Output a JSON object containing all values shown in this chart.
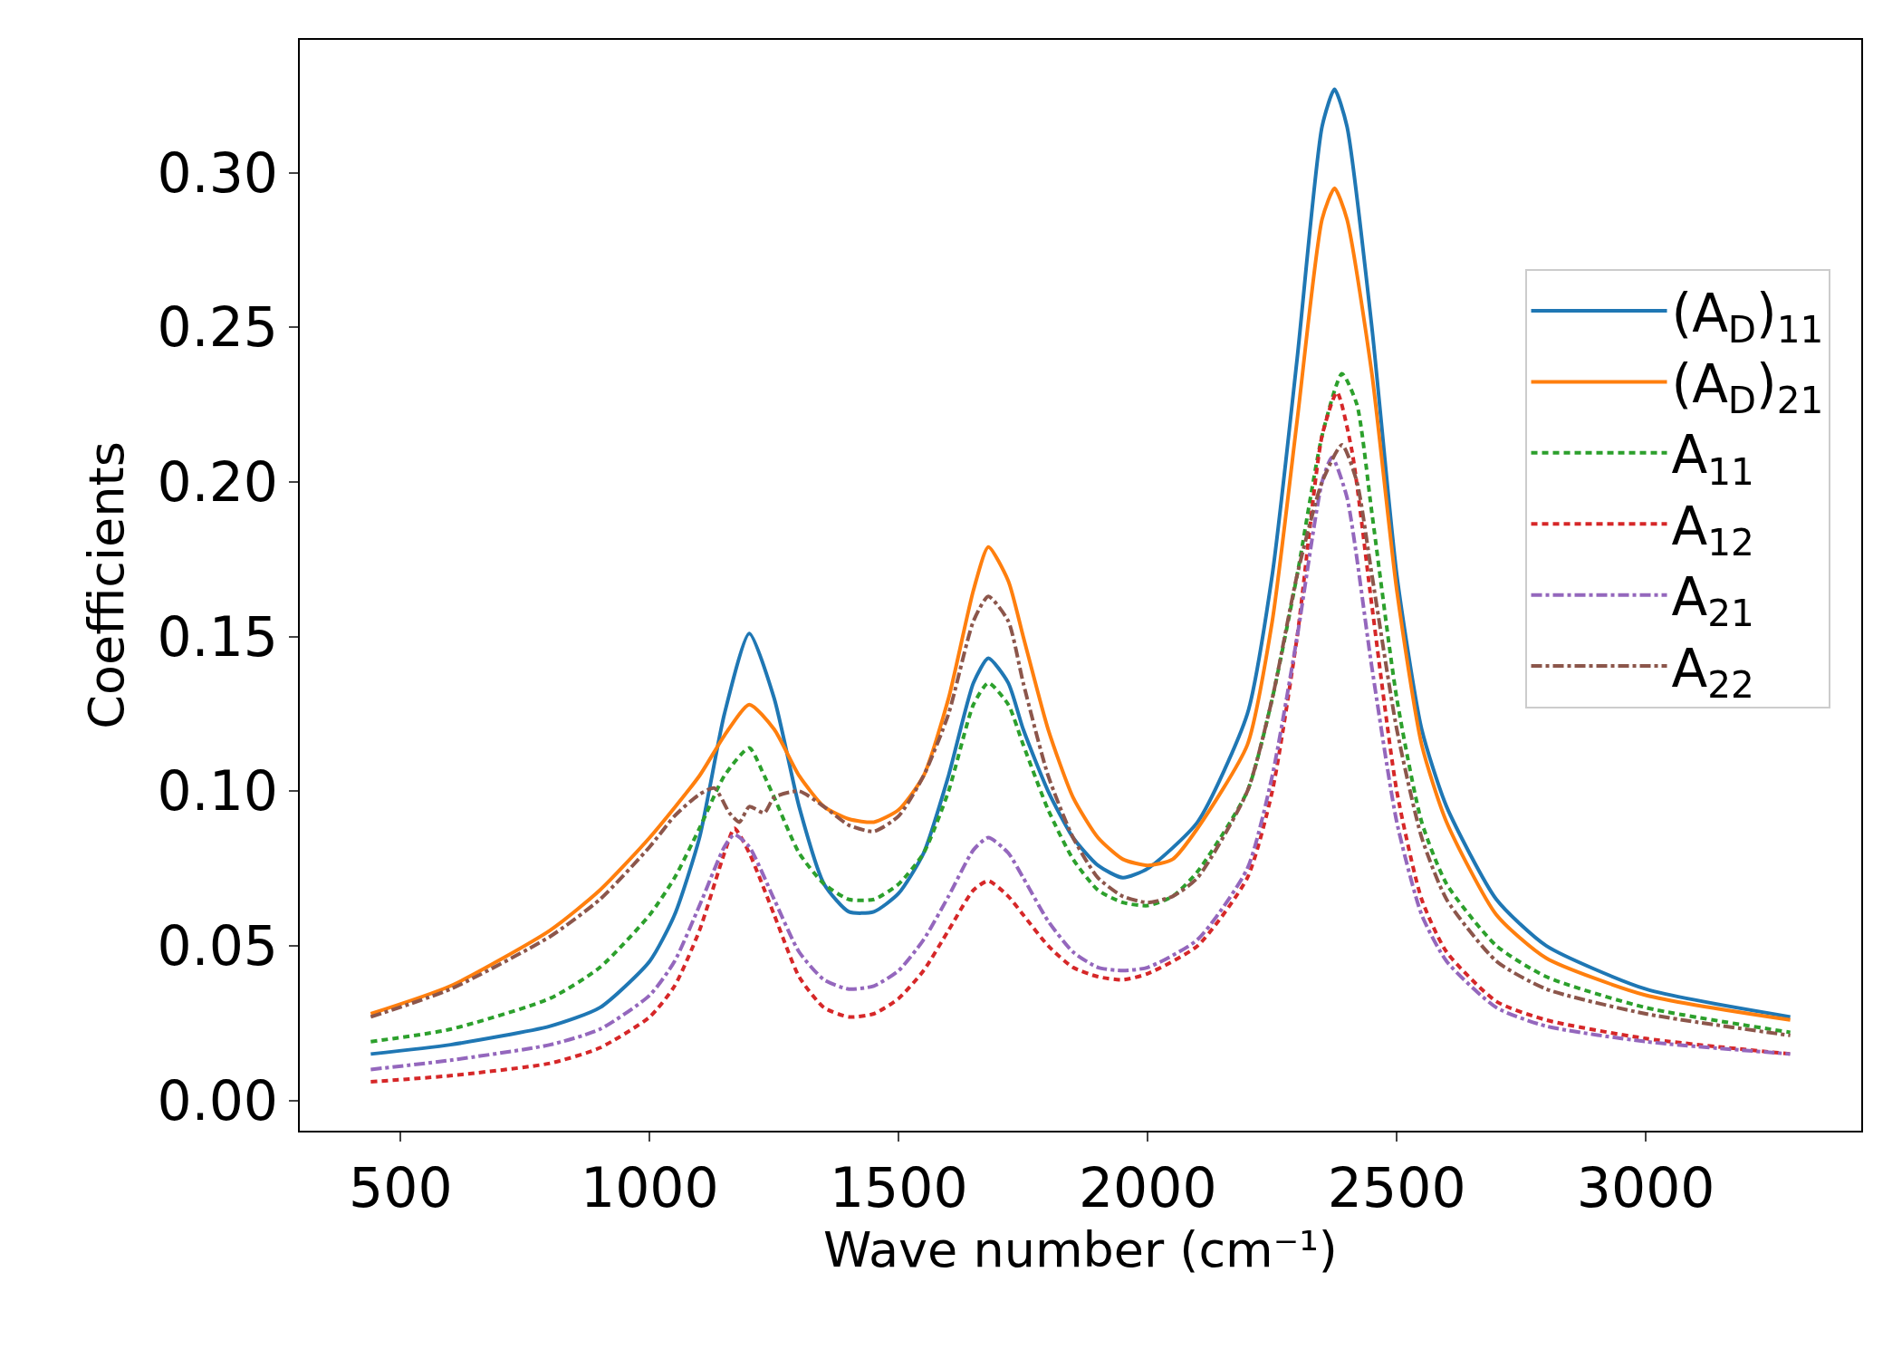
{
  "chart_data": {
    "type": "line",
    "xlabel": "Wave number (cm⁻¹)",
    "ylabel": "Coefficients",
    "xlim": [
      297.5,
      3432.5
    ],
    "ylim": [
      -0.0098,
      0.343
    ],
    "xticks": [
      500,
      1000,
      1500,
      2000,
      2500,
      3000
    ],
    "yticks": [
      {
        "value": 0,
        "label": "0.00"
      },
      {
        "value": 0.05,
        "label": "0.05"
      },
      {
        "value": 0.1,
        "label": "0.10"
      },
      {
        "value": 0.15,
        "label": "0.15"
      },
      {
        "value": 0.2,
        "label": "0.20"
      },
      {
        "value": 0.25,
        "label": "0.25"
      },
      {
        "value": 0.3,
        "label": "0.30"
      }
    ],
    "grid": false,
    "legend": "right",
    "marker": "none",
    "series": [
      {
        "name": "(A$_{D}$)$_{11}$",
        "color": "#1f77b4",
        "line_style": "solid",
        "x": [
          440,
          600,
          800,
          900,
          1000,
          1050,
          1100,
          1150,
          1200,
          1250,
          1300,
          1350,
          1400,
          1450,
          1500,
          1550,
          1600,
          1650,
          1680,
          1720,
          1750,
          1800,
          1850,
          1900,
          1950,
          2000,
          2100,
          2200,
          2250,
          2300,
          2350,
          2375,
          2400,
          2450,
          2500,
          2550,
          2600,
          2700,
          2800,
          3000,
          3290
        ],
        "values": [
          0.015,
          0.018,
          0.024,
          0.03,
          0.045,
          0.06,
          0.085,
          0.125,
          0.151,
          0.13,
          0.095,
          0.07,
          0.061,
          0.061,
          0.067,
          0.08,
          0.105,
          0.135,
          0.143,
          0.135,
          0.12,
          0.1,
          0.085,
          0.076,
          0.072,
          0.075,
          0.09,
          0.125,
          0.17,
          0.24,
          0.315,
          0.327,
          0.315,
          0.25,
          0.17,
          0.12,
          0.095,
          0.065,
          0.05,
          0.036,
          0.027
        ]
      },
      {
        "name": "(A$_{D}$)$_{21}$",
        "color": "#ff7f0e",
        "line_style": "solid",
        "x": [
          440,
          600,
          800,
          900,
          1000,
          1100,
          1150,
          1200,
          1250,
          1300,
          1350,
          1400,
          1450,
          1500,
          1550,
          1600,
          1650,
          1680,
          1720,
          1750,
          1800,
          1850,
          1900,
          1950,
          2000,
          2050,
          2100,
          2200,
          2250,
          2300,
          2350,
          2375,
          2400,
          2450,
          2500,
          2550,
          2600,
          2700,
          2800,
          3000,
          3290
        ],
        "values": [
          0.028,
          0.037,
          0.055,
          0.068,
          0.085,
          0.105,
          0.118,
          0.128,
          0.12,
          0.105,
          0.095,
          0.091,
          0.09,
          0.094,
          0.105,
          0.13,
          0.165,
          0.179,
          0.168,
          0.15,
          0.12,
          0.098,
          0.085,
          0.078,
          0.076,
          0.078,
          0.088,
          0.115,
          0.155,
          0.22,
          0.285,
          0.295,
          0.285,
          0.235,
          0.165,
          0.115,
          0.09,
          0.06,
          0.046,
          0.034,
          0.026
        ]
      },
      {
        "name": "A$_{11}$",
        "color": "#2ca02c",
        "line_style": "dotted",
        "x": [
          440,
          600,
          800,
          900,
          1000,
          1050,
          1100,
          1150,
          1200,
          1230,
          1250,
          1300,
          1350,
          1400,
          1450,
          1500,
          1550,
          1600,
          1650,
          1680,
          1720,
          1750,
          1800,
          1850,
          1900,
          1950,
          2000,
          2050,
          2100,
          2200,
          2250,
          2300,
          2350,
          2390,
          2420,
          2450,
          2500,
          2550,
          2600,
          2700,
          2800,
          3000,
          3290
        ],
        "values": [
          0.019,
          0.023,
          0.033,
          0.043,
          0.06,
          0.072,
          0.088,
          0.105,
          0.114,
          0.105,
          0.098,
          0.08,
          0.07,
          0.065,
          0.065,
          0.07,
          0.08,
          0.1,
          0.128,
          0.135,
          0.128,
          0.115,
          0.094,
          0.078,
          0.068,
          0.064,
          0.063,
          0.066,
          0.074,
          0.1,
          0.13,
          0.17,
          0.215,
          0.235,
          0.225,
          0.19,
          0.13,
          0.09,
          0.07,
          0.05,
          0.04,
          0.03,
          0.022
        ]
      },
      {
        "name": "A$_{12}$",
        "color": "#d62728",
        "line_style": "dotted",
        "x": [
          440,
          600,
          800,
          900,
          1000,
          1050,
          1100,
          1150,
          1170,
          1200,
          1250,
          1300,
          1350,
          1400,
          1450,
          1500,
          1550,
          1600,
          1650,
          1680,
          1720,
          1750,
          1800,
          1850,
          1900,
          1950,
          2000,
          2100,
          2200,
          2250,
          2300,
          2350,
          2380,
          2410,
          2450,
          2500,
          2550,
          2600,
          2700,
          2800,
          3000,
          3290
        ],
        "values": [
          0.006,
          0.008,
          0.012,
          0.017,
          0.027,
          0.037,
          0.055,
          0.08,
          0.088,
          0.08,
          0.06,
          0.04,
          0.03,
          0.027,
          0.028,
          0.033,
          0.042,
          0.055,
          0.068,
          0.071,
          0.066,
          0.06,
          0.05,
          0.043,
          0.04,
          0.039,
          0.041,
          0.05,
          0.072,
          0.1,
          0.15,
          0.215,
          0.229,
          0.21,
          0.16,
          0.1,
          0.065,
          0.048,
          0.032,
          0.026,
          0.02,
          0.015
        ]
      },
      {
        "name": "A$_{21}$",
        "color": "#9467bd",
        "line_style": "dashdot",
        "x": [
          440,
          600,
          800,
          900,
          1000,
          1050,
          1100,
          1150,
          1170,
          1200,
          1250,
          1300,
          1350,
          1400,
          1450,
          1500,
          1550,
          1600,
          1650,
          1680,
          1720,
          1750,
          1800,
          1850,
          1900,
          1950,
          2000,
          2100,
          2200,
          2250,
          2300,
          2350,
          2370,
          2400,
          2450,
          2500,
          2550,
          2600,
          2700,
          2800,
          3000,
          3290
        ],
        "values": [
          0.01,
          0.013,
          0.018,
          0.023,
          0.034,
          0.045,
          0.063,
          0.082,
          0.086,
          0.082,
          0.065,
          0.048,
          0.039,
          0.036,
          0.037,
          0.042,
          0.052,
          0.066,
          0.081,
          0.085,
          0.08,
          0.072,
          0.058,
          0.048,
          0.043,
          0.042,
          0.043,
          0.052,
          0.075,
          0.105,
          0.15,
          0.2,
          0.208,
          0.195,
          0.14,
          0.09,
          0.06,
          0.045,
          0.03,
          0.024,
          0.019,
          0.015
        ]
      },
      {
        "name": "A$_{22}$",
        "color": "#8c564b",
        "line_style": "dashdot",
        "x": [
          440,
          600,
          800,
          900,
          1000,
          1050,
          1100,
          1130,
          1160,
          1180,
          1200,
          1230,
          1250,
          1300,
          1350,
          1400,
          1450,
          1500,
          1550,
          1600,
          1650,
          1680,
          1720,
          1750,
          1800,
          1850,
          1900,
          1950,
          2000,
          2050,
          2100,
          2200,
          2250,
          2300,
          2350,
          2390,
          2420,
          2450,
          2500,
          2550,
          2600,
          2700,
          2800,
          3000,
          3290
        ],
        "values": [
          0.027,
          0.036,
          0.053,
          0.065,
          0.082,
          0.092,
          0.099,
          0.101,
          0.093,
          0.09,
          0.095,
          0.093,
          0.098,
          0.1,
          0.095,
          0.089,
          0.087,
          0.092,
          0.105,
          0.125,
          0.155,
          0.163,
          0.155,
          0.135,
          0.105,
          0.085,
          0.072,
          0.066,
          0.064,
          0.066,
          0.072,
          0.1,
          0.13,
          0.17,
          0.2,
          0.212,
          0.2,
          0.17,
          0.12,
          0.085,
          0.065,
          0.045,
          0.036,
          0.028,
          0.021
        ]
      }
    ]
  }
}
